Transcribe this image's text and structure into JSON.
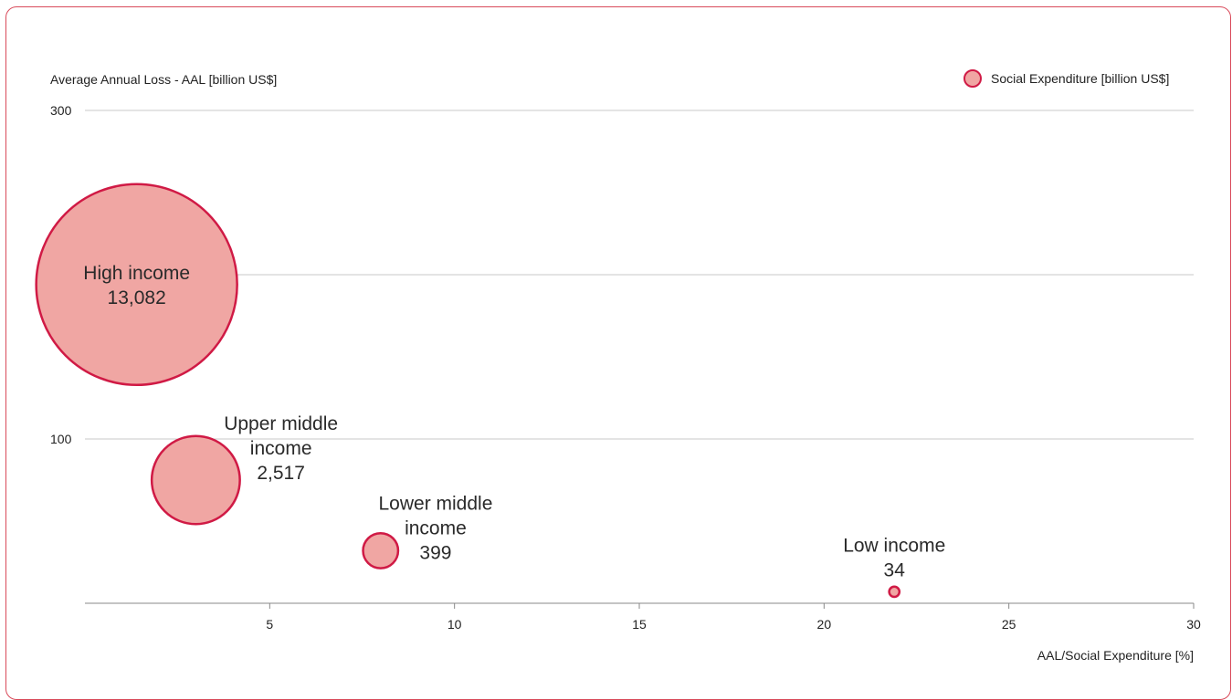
{
  "chart_data": {
    "type": "bubble",
    "title": "",
    "xlabel": "AAL/Social Expenditure [%]",
    "ylabel": "Average Annual Loss - AAL [billion US$]",
    "xlim": [
      0,
      30
    ],
    "ylim": [
      0,
      300
    ],
    "x_ticks": [
      "5",
      "10",
      "15",
      "20",
      "25",
      "30"
    ],
    "y_ticks": [
      "100",
      "300"
    ],
    "grid_y": [
      100,
      200,
      300
    ],
    "legend": {
      "label": "Social Expenditure [billion US$]",
      "placement": "top-right"
    },
    "colors": {
      "bubble_fill": "#f0a6a3",
      "bubble_stroke": "#d01a45",
      "grid": "#c8c8c8",
      "axis": "#888888",
      "frame": "#d94a5a"
    },
    "points": [
      {
        "name": "High income",
        "value_label": "13,082",
        "size": 13082,
        "x": 1.4,
        "y": 194
      },
      {
        "name": "Upper middle income",
        "value_label": "2,517",
        "size": 2517,
        "x": 3.0,
        "y": 75
      },
      {
        "name": "Lower middle income",
        "value_label": "399",
        "size": 399,
        "x": 8.0,
        "y": 32
      },
      {
        "name": "Low income",
        "value_label": "34",
        "size": 34,
        "x": 21.9,
        "y": 7
      }
    ]
  }
}
